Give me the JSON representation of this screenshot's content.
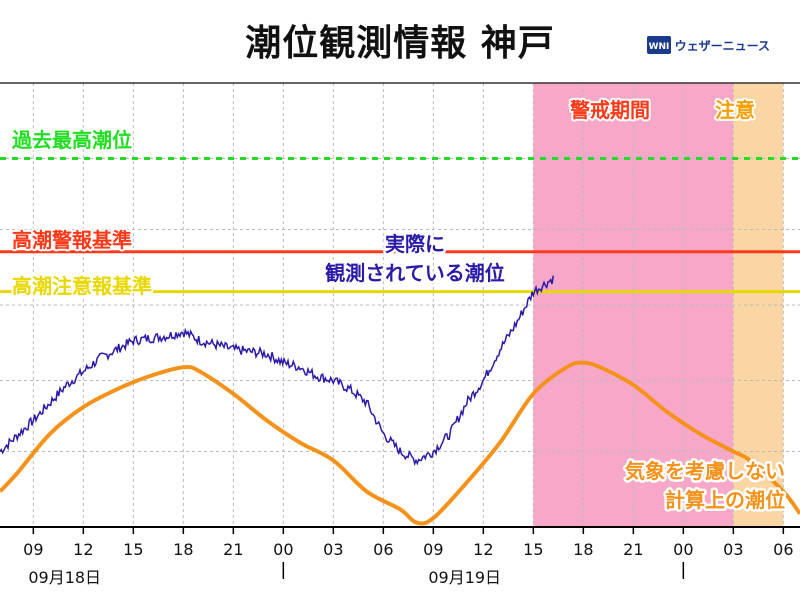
{
  "title": "潮位観測情報 神戸",
  "brand": {
    "name": "ウェザーニュース",
    "logo_text": "WNI"
  },
  "colors": {
    "warning_zone": "#f7a8c8",
    "caution_zone": "#fbd6a5",
    "record_line": "#22dd22",
    "warning_line": "#ff3a1a",
    "caution_line": "#e8d800",
    "observed_line": "#2a1aa8",
    "astronomical_line": "#f5921b"
  },
  "chart_data": {
    "type": "line",
    "title": "潮位観測情報 神戸",
    "x_unit": "hours from 2020-09-18 07:00",
    "xlim": [
      0,
      48
    ],
    "ylim": [
      0,
      100
    ],
    "grid": true,
    "x_ticks": [
      {
        "x": 2,
        "label": "09"
      },
      {
        "x": 5,
        "label": "12"
      },
      {
        "x": 8,
        "label": "15"
      },
      {
        "x": 11,
        "label": "18"
      },
      {
        "x": 14,
        "label": "21"
      },
      {
        "x": 17,
        "label": "00"
      },
      {
        "x": 20,
        "label": "03"
      },
      {
        "x": 23,
        "label": "06"
      },
      {
        "x": 26,
        "label": "09"
      },
      {
        "x": 29,
        "label": "12"
      },
      {
        "x": 32,
        "label": "15"
      },
      {
        "x": 35,
        "label": "18"
      },
      {
        "x": 38,
        "label": "21"
      },
      {
        "x": 41,
        "label": "00"
      },
      {
        "x": 44,
        "label": "03"
      },
      {
        "x": 47,
        "label": "06"
      },
      {
        "x": 50,
        "label": "09"
      }
    ],
    "date_labels": [
      {
        "x": 2,
        "label": "09月18日"
      },
      {
        "x": 26,
        "label": "09月19日"
      }
    ],
    "day_dividers": [
      17,
      41
    ],
    "zones": [
      {
        "name": "警戒期間",
        "x_start": 32,
        "x_end": 44,
        "color": "#f7a8c8"
      },
      {
        "name": "注意",
        "x_start": 44,
        "x_end": 47,
        "color": "#fbd6a5"
      }
    ],
    "reference_lines": [
      {
        "name": "過去最高潮位",
        "y": 83,
        "style": "dotted",
        "color": "#22dd22"
      },
      {
        "name": "高潮警報基準",
        "y": 62,
        "style": "solid",
        "color": "#ff3a1a"
      },
      {
        "name": "高潮注意報基準",
        "y": 53,
        "style": "solid",
        "color": "#e8d800"
      }
    ],
    "series": [
      {
        "name": "実際に観測されている潮位",
        "label_lines": [
          "実際に",
          "観測されている潮位"
        ],
        "color": "#2a1aa8",
        "noisy": true,
        "points": [
          [
            0,
            17
          ],
          [
            2,
            24
          ],
          [
            4,
            32
          ],
          [
            6,
            38
          ],
          [
            8,
            42
          ],
          [
            10,
            43
          ],
          [
            11,
            44
          ],
          [
            12,
            42
          ],
          [
            14,
            40
          ],
          [
            16,
            39
          ],
          [
            17,
            37
          ],
          [
            18,
            36
          ],
          [
            19,
            34
          ],
          [
            20,
            33
          ],
          [
            21,
            31
          ],
          [
            22,
            28
          ],
          [
            23,
            21
          ],
          [
            24,
            17
          ],
          [
            25,
            15
          ],
          [
            26,
            17
          ],
          [
            27,
            21
          ],
          [
            28,
            28
          ],
          [
            29,
            33
          ],
          [
            30,
            40
          ],
          [
            31,
            46
          ],
          [
            32,
            53
          ],
          [
            33.2,
            56
          ]
        ]
      },
      {
        "name": "気象を考慮しない計算上の潮位",
        "label_lines": [
          "気象を考慮しない",
          "計算上の潮位"
        ],
        "color": "#f5921b",
        "noisy": false,
        "points": [
          [
            0,
            8
          ],
          [
            1,
            12
          ],
          [
            3,
            21
          ],
          [
            5,
            27
          ],
          [
            7,
            31
          ],
          [
            9,
            34
          ],
          [
            11,
            36
          ],
          [
            12,
            35
          ],
          [
            14,
            30
          ],
          [
            16,
            24
          ],
          [
            18,
            19
          ],
          [
            20,
            15
          ],
          [
            22,
            8
          ],
          [
            24,
            4
          ],
          [
            25,
            1
          ],
          [
            26,
            2
          ],
          [
            28,
            10
          ],
          [
            30,
            19
          ],
          [
            32,
            30
          ],
          [
            34,
            36
          ],
          [
            35,
            37
          ],
          [
            36,
            36
          ],
          [
            38,
            32
          ],
          [
            40,
            26
          ],
          [
            42,
            21
          ],
          [
            44,
            17
          ],
          [
            45,
            15
          ],
          [
            47,
            8
          ],
          [
            48,
            3
          ]
        ]
      }
    ]
  }
}
